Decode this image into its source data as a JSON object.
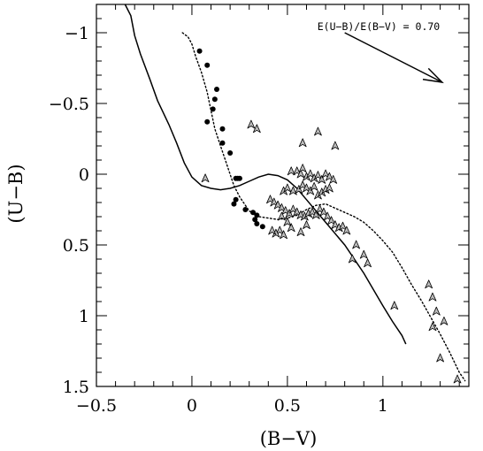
{
  "chart_data": {
    "type": "scatter",
    "title": "",
    "xlabel": "(B−V)",
    "ylabel": "(U−B)",
    "xlim": [
      -0.5,
      1.45
    ],
    "ylim": [
      1.5,
      -1.2
    ],
    "y_inverted": true,
    "grid": false,
    "x_ticks": [
      -0.5,
      0,
      0.5,
      1
    ],
    "x_tick_labels": [
      "−0.5",
      "0",
      "0.5",
      "1"
    ],
    "y_ticks": [
      -1,
      -0.5,
      0,
      0.5,
      1,
      1.5
    ],
    "y_tick_labels": [
      "−1",
      "−0.5",
      "0",
      "0.5",
      "1",
      "1.5"
    ],
    "annotation": {
      "text": "E(U−B)/E(B−V) = 0.70",
      "arrow_from": [
        0.8,
        -1.0
      ],
      "arrow_to": [
        1.31,
        -0.65
      ]
    },
    "series": [
      {
        "style": "solid-line",
        "x": [
          -0.35,
          -0.32,
          -0.3,
          -0.27,
          -0.22,
          -0.18,
          -0.12,
          -0.08,
          -0.04,
          0.0,
          0.05,
          0.1,
          0.15,
          0.2,
          0.25,
          0.3,
          0.35,
          0.4,
          0.45,
          0.5,
          0.55,
          0.6,
          0.7,
          0.8,
          0.9,
          1.0,
          1.05,
          1.1,
          1.12
        ],
        "y": [
          -1.2,
          -1.12,
          -0.98,
          -0.85,
          -0.67,
          -0.52,
          -0.35,
          -0.22,
          -0.08,
          0.02,
          0.08,
          0.1,
          0.11,
          0.1,
          0.08,
          0.05,
          0.02,
          0.0,
          0.01,
          0.04,
          0.1,
          0.18,
          0.34,
          0.5,
          0.7,
          0.93,
          1.04,
          1.14,
          1.2
        ]
      },
      {
        "style": "dotted-line",
        "x": [
          -0.05,
          -0.02,
          0.0,
          0.02,
          0.05,
          0.08,
          0.1,
          0.12,
          0.15,
          0.18,
          0.2,
          0.22,
          0.25,
          0.28,
          0.3,
          0.35,
          0.4,
          0.45,
          0.5,
          0.55,
          0.6,
          0.65,
          0.7,
          0.75,
          0.8,
          0.85,
          0.9,
          0.95,
          1.0,
          1.05,
          1.1,
          1.15,
          1.2,
          1.25,
          1.3,
          1.35,
          1.4,
          1.43
        ],
        "y": [
          -1.0,
          -0.97,
          -0.92,
          -0.83,
          -0.72,
          -0.58,
          -0.45,
          -0.32,
          -0.2,
          -0.08,
          0.0,
          0.08,
          0.16,
          0.22,
          0.26,
          0.3,
          0.31,
          0.32,
          0.31,
          0.29,
          0.25,
          0.22,
          0.21,
          0.24,
          0.27,
          0.3,
          0.34,
          0.4,
          0.47,
          0.55,
          0.66,
          0.78,
          0.89,
          1.01,
          1.13,
          1.26,
          1.4,
          1.46
        ]
      },
      {
        "style": "filled-circle",
        "x": [
          0.04,
          0.08,
          0.13,
          0.12,
          0.11,
          0.08,
          0.16,
          0.2,
          0.16,
          0.23,
          0.24,
          0.25,
          0.23,
          0.22,
          0.28,
          0.32,
          0.34,
          0.33,
          0.37,
          0.34
        ],
        "y": [
          -0.87,
          -0.77,
          -0.6,
          -0.53,
          -0.46,
          -0.37,
          -0.32,
          -0.15,
          -0.22,
          0.03,
          0.03,
          0.03,
          0.18,
          0.21,
          0.25,
          0.27,
          0.29,
          0.32,
          0.37,
          0.35
        ]
      },
      {
        "style": "open-triangle",
        "x": [
          0.07,
          0.31,
          0.34,
          0.58,
          0.66,
          0.75,
          0.52,
          0.55,
          0.57,
          0.58,
          0.6,
          0.62,
          0.64,
          0.66,
          0.68,
          0.7,
          0.72,
          0.74,
          0.48,
          0.5,
          0.53,
          0.56,
          0.58,
          0.6,
          0.62,
          0.64,
          0.66,
          0.68,
          0.7,
          0.72,
          0.41,
          0.43,
          0.45,
          0.47,
          0.49,
          0.51,
          0.53,
          0.55,
          0.57,
          0.59,
          0.61,
          0.63,
          0.65,
          0.67,
          0.69,
          0.71,
          0.73,
          0.75,
          0.77,
          0.79,
          0.81,
          0.46,
          0.48,
          0.52,
          0.44,
          0.42,
          0.5,
          0.6,
          0.57,
          0.47,
          0.86,
          0.9,
          0.92,
          0.84,
          1.06,
          1.24,
          1.26,
          1.28,
          1.32,
          1.26,
          1.3,
          1.39
        ],
        "y": [
          0.03,
          -0.35,
          -0.32,
          -0.22,
          -0.3,
          -0.2,
          -0.02,
          -0.02,
          0.0,
          -0.04,
          0.02,
          0.0,
          0.03,
          0.01,
          0.04,
          0.0,
          0.02,
          0.04,
          0.12,
          0.1,
          0.12,
          0.11,
          0.08,
          0.1,
          0.12,
          0.09,
          0.15,
          0.13,
          0.11,
          0.1,
          0.18,
          0.2,
          0.22,
          0.24,
          0.26,
          0.28,
          0.25,
          0.27,
          0.29,
          0.3,
          0.28,
          0.27,
          0.29,
          0.25,
          0.27,
          0.3,
          0.33,
          0.36,
          0.38,
          0.37,
          0.4,
          0.4,
          0.43,
          0.38,
          0.42,
          0.4,
          0.34,
          0.36,
          0.41,
          0.3,
          0.5,
          0.57,
          0.63,
          0.6,
          0.93,
          0.78,
          0.87,
          0.97,
          1.04,
          1.08,
          1.3,
          1.45
        ]
      }
    ]
  }
}
